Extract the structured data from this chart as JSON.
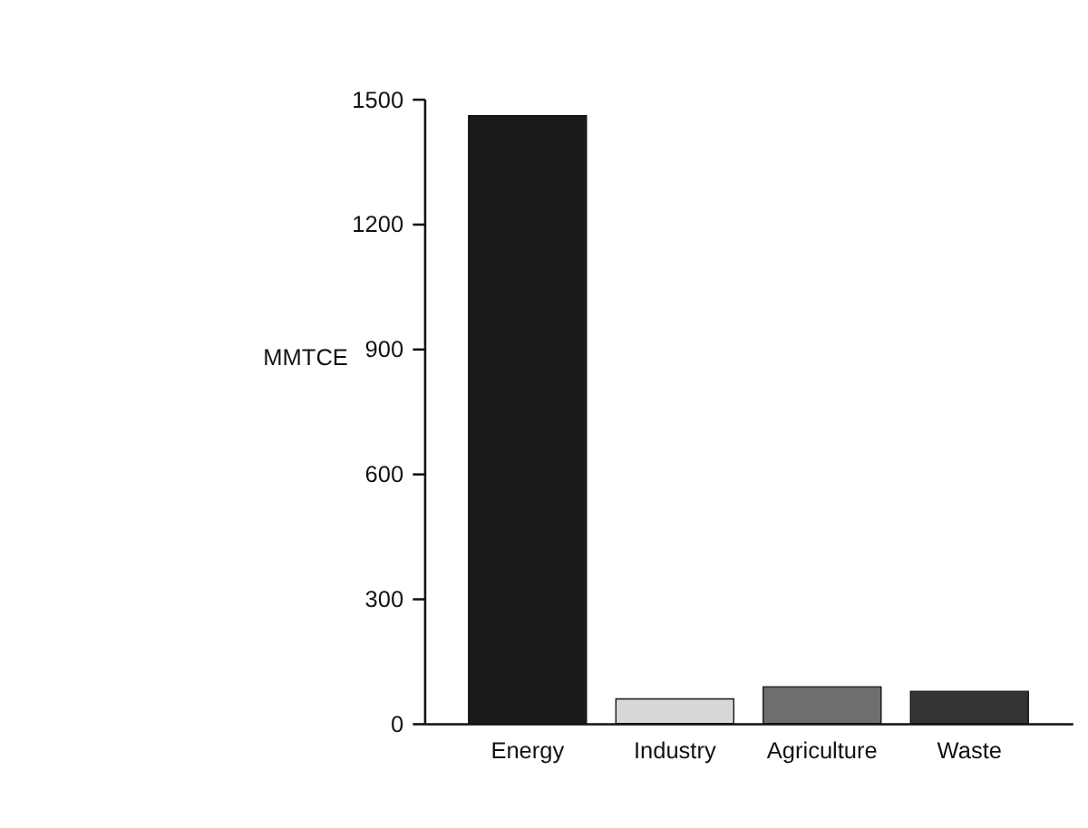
{
  "chart_data": {
    "type": "bar",
    "ylabel": "MMTCE",
    "categories": [
      "Energy",
      "Industry",
      "Agriculture",
      "Waste"
    ],
    "values": [
      1460,
      59,
      88,
      77
    ],
    "colors": [
      "#1a1a1a",
      "#d8d8d8",
      "#6e6e6e",
      "#333333"
    ],
    "ylim": [
      0,
      1500
    ],
    "yticks": [
      0,
      300,
      600,
      900,
      1200,
      1500
    ],
    "grid": false
  }
}
